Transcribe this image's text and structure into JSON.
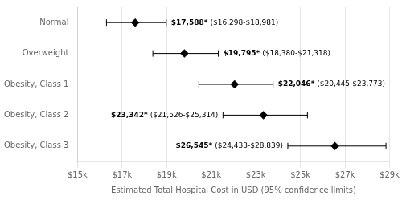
{
  "chart_data": {
    "type": "forest",
    "categories": [
      "Normal",
      "Overweight",
      "Obesity, Class 1",
      "Obesity, Class 2",
      "Obesity, Class 3"
    ],
    "values": [
      17588,
      19795,
      22046,
      23342,
      26545
    ],
    "ci_low": [
      16298,
      18380,
      20445,
      21526,
      24433
    ],
    "ci_high": [
      18981,
      21318,
      23773,
      25314,
      28839
    ],
    "data_labels": true,
    "value_labels": [
      "$17,588*",
      "$19,795*",
      "$22,046*",
      "$23,342*",
      "$26,545*"
    ],
    "ci_labels": [
      "($16,298-$18,981)",
      "($18,380-$21,318)",
      "($20,445-$23,773)",
      "($21,526-$25,314)",
      "($24,433-$28,839)"
    ],
    "xlabel": "Estimated Total Hospital Cost in USD (95% confidence limits)",
    "xlim": [
      15000,
      29000
    ],
    "xticks": [
      {
        "value": 15000,
        "label": "$15k"
      },
      {
        "value": 17000,
        "label": "$17k"
      },
      {
        "value": 19000,
        "label": "$19k"
      },
      {
        "value": 21000,
        "label": "$21k"
      },
      {
        "value": 23000,
        "label": "$23k"
      },
      {
        "value": 25000,
        "label": "$25k"
      },
      {
        "value": 27000,
        "label": "$27k"
      },
      {
        "value": 29000,
        "label": "$29k"
      }
    ],
    "grid": true,
    "color": "#000000",
    "marker": "diamond"
  }
}
